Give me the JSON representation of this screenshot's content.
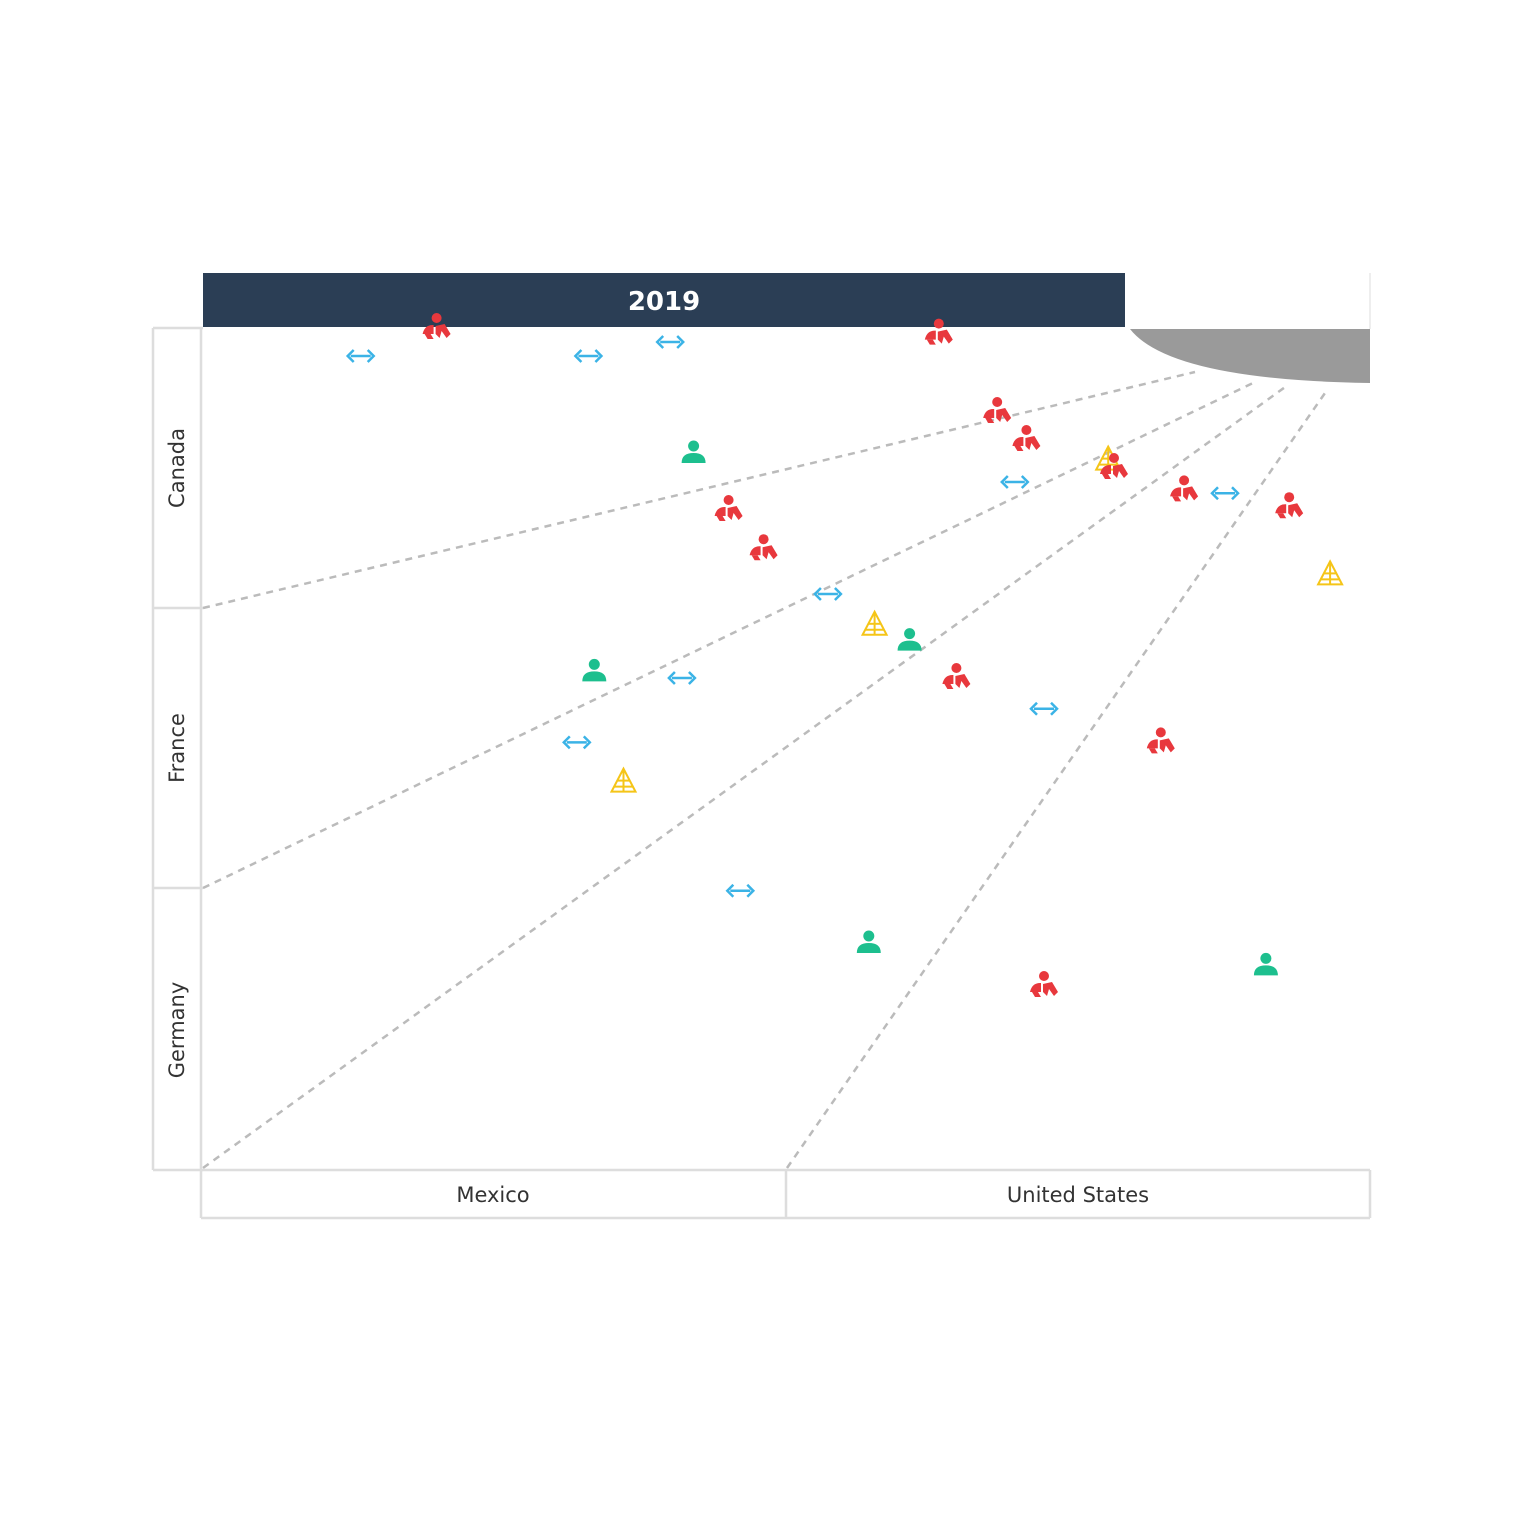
{
  "chart_data": {
    "type": "scatter",
    "title": "2019",
    "x_categories": [
      "Mexico",
      "United States"
    ],
    "y_categories": [
      "Canada",
      "France",
      "Germany"
    ],
    "grid": false,
    "legend": "none",
    "colors": {
      "header": "#2b3e55",
      "connector": "#9a9a9a",
      "guide": "#bbbbbb",
      "frame": "#dddddd"
    },
    "marker_styles": {
      "red-person-group-icon": "#e8383d",
      "blue-double-arrow-icon": "#3bb3e6",
      "green-person-icon": "#1dbf8e",
      "yellow-pyramid-icon": "#f5c518"
    },
    "points": [
      {
        "x": 0.27,
        "y": 0.1,
        "icon": "blue-double-arrow-icon"
      },
      {
        "x": 0.8,
        "y": 0.05,
        "icon": "blue-double-arrow-icon"
      },
      {
        "x": 0.84,
        "y": 0.45,
        "icon": "green-person-icon"
      },
      {
        "x": 0.9,
        "y": 0.65,
        "icon": "red-person-group-icon"
      },
      {
        "x": 0.96,
        "y": 0.79,
        "icon": "red-person-group-icon"
      },
      {
        "x": 0.4,
        "y": 0.0,
        "icon": "red-person-group-icon"
      },
      {
        "x": 0.66,
        "y": 0.1,
        "icon": "blue-double-arrow-icon"
      },
      {
        "x": 1.26,
        "y": 0.02,
        "icon": "red-person-group-icon"
      },
      {
        "x": 1.36,
        "y": 0.3,
        "icon": "red-person-group-icon"
      },
      {
        "x": 1.41,
        "y": 0.4,
        "icon": "red-person-group-icon"
      },
      {
        "x": 1.39,
        "y": 0.55,
        "icon": "blue-double-arrow-icon"
      },
      {
        "x": 1.55,
        "y": 0.47,
        "icon": "yellow-pyramid-icon"
      },
      {
        "x": 1.56,
        "y": 0.5,
        "icon": "red-person-group-icon"
      },
      {
        "x": 1.68,
        "y": 0.58,
        "icon": "red-person-group-icon"
      },
      {
        "x": 1.75,
        "y": 0.59,
        "icon": "blue-double-arrow-icon"
      },
      {
        "x": 1.86,
        "y": 0.64,
        "icon": "red-person-group-icon"
      },
      {
        "x": 1.93,
        "y": 0.88,
        "icon": "yellow-pyramid-icon"
      },
      {
        "x": 0.82,
        "y": 1.25,
        "icon": "blue-double-arrow-icon"
      },
      {
        "x": 0.67,
        "y": 1.23,
        "icon": "green-person-icon"
      },
      {
        "x": 0.64,
        "y": 1.48,
        "icon": "blue-double-arrow-icon"
      },
      {
        "x": 0.72,
        "y": 1.62,
        "icon": "yellow-pyramid-icon"
      },
      {
        "x": 0.92,
        "y": 2.01,
        "icon": "blue-double-arrow-icon"
      },
      {
        "x": 1.07,
        "y": 0.95,
        "icon": "blue-double-arrow-icon"
      },
      {
        "x": 1.15,
        "y": 1.06,
        "icon": "yellow-pyramid-icon"
      },
      {
        "x": 1.21,
        "y": 1.12,
        "icon": "green-person-icon"
      },
      {
        "x": 1.29,
        "y": 1.25,
        "icon": "red-person-group-icon"
      },
      {
        "x": 1.44,
        "y": 1.36,
        "icon": "blue-double-arrow-icon"
      },
      {
        "x": 1.64,
        "y": 1.48,
        "icon": "red-person-group-icon"
      },
      {
        "x": 1.14,
        "y": 2.2,
        "icon": "green-person-icon"
      },
      {
        "x": 1.44,
        "y": 2.35,
        "icon": "red-person-group-icon"
      },
      {
        "x": 1.82,
        "y": 2.28,
        "icon": "green-person-icon"
      }
    ]
  }
}
